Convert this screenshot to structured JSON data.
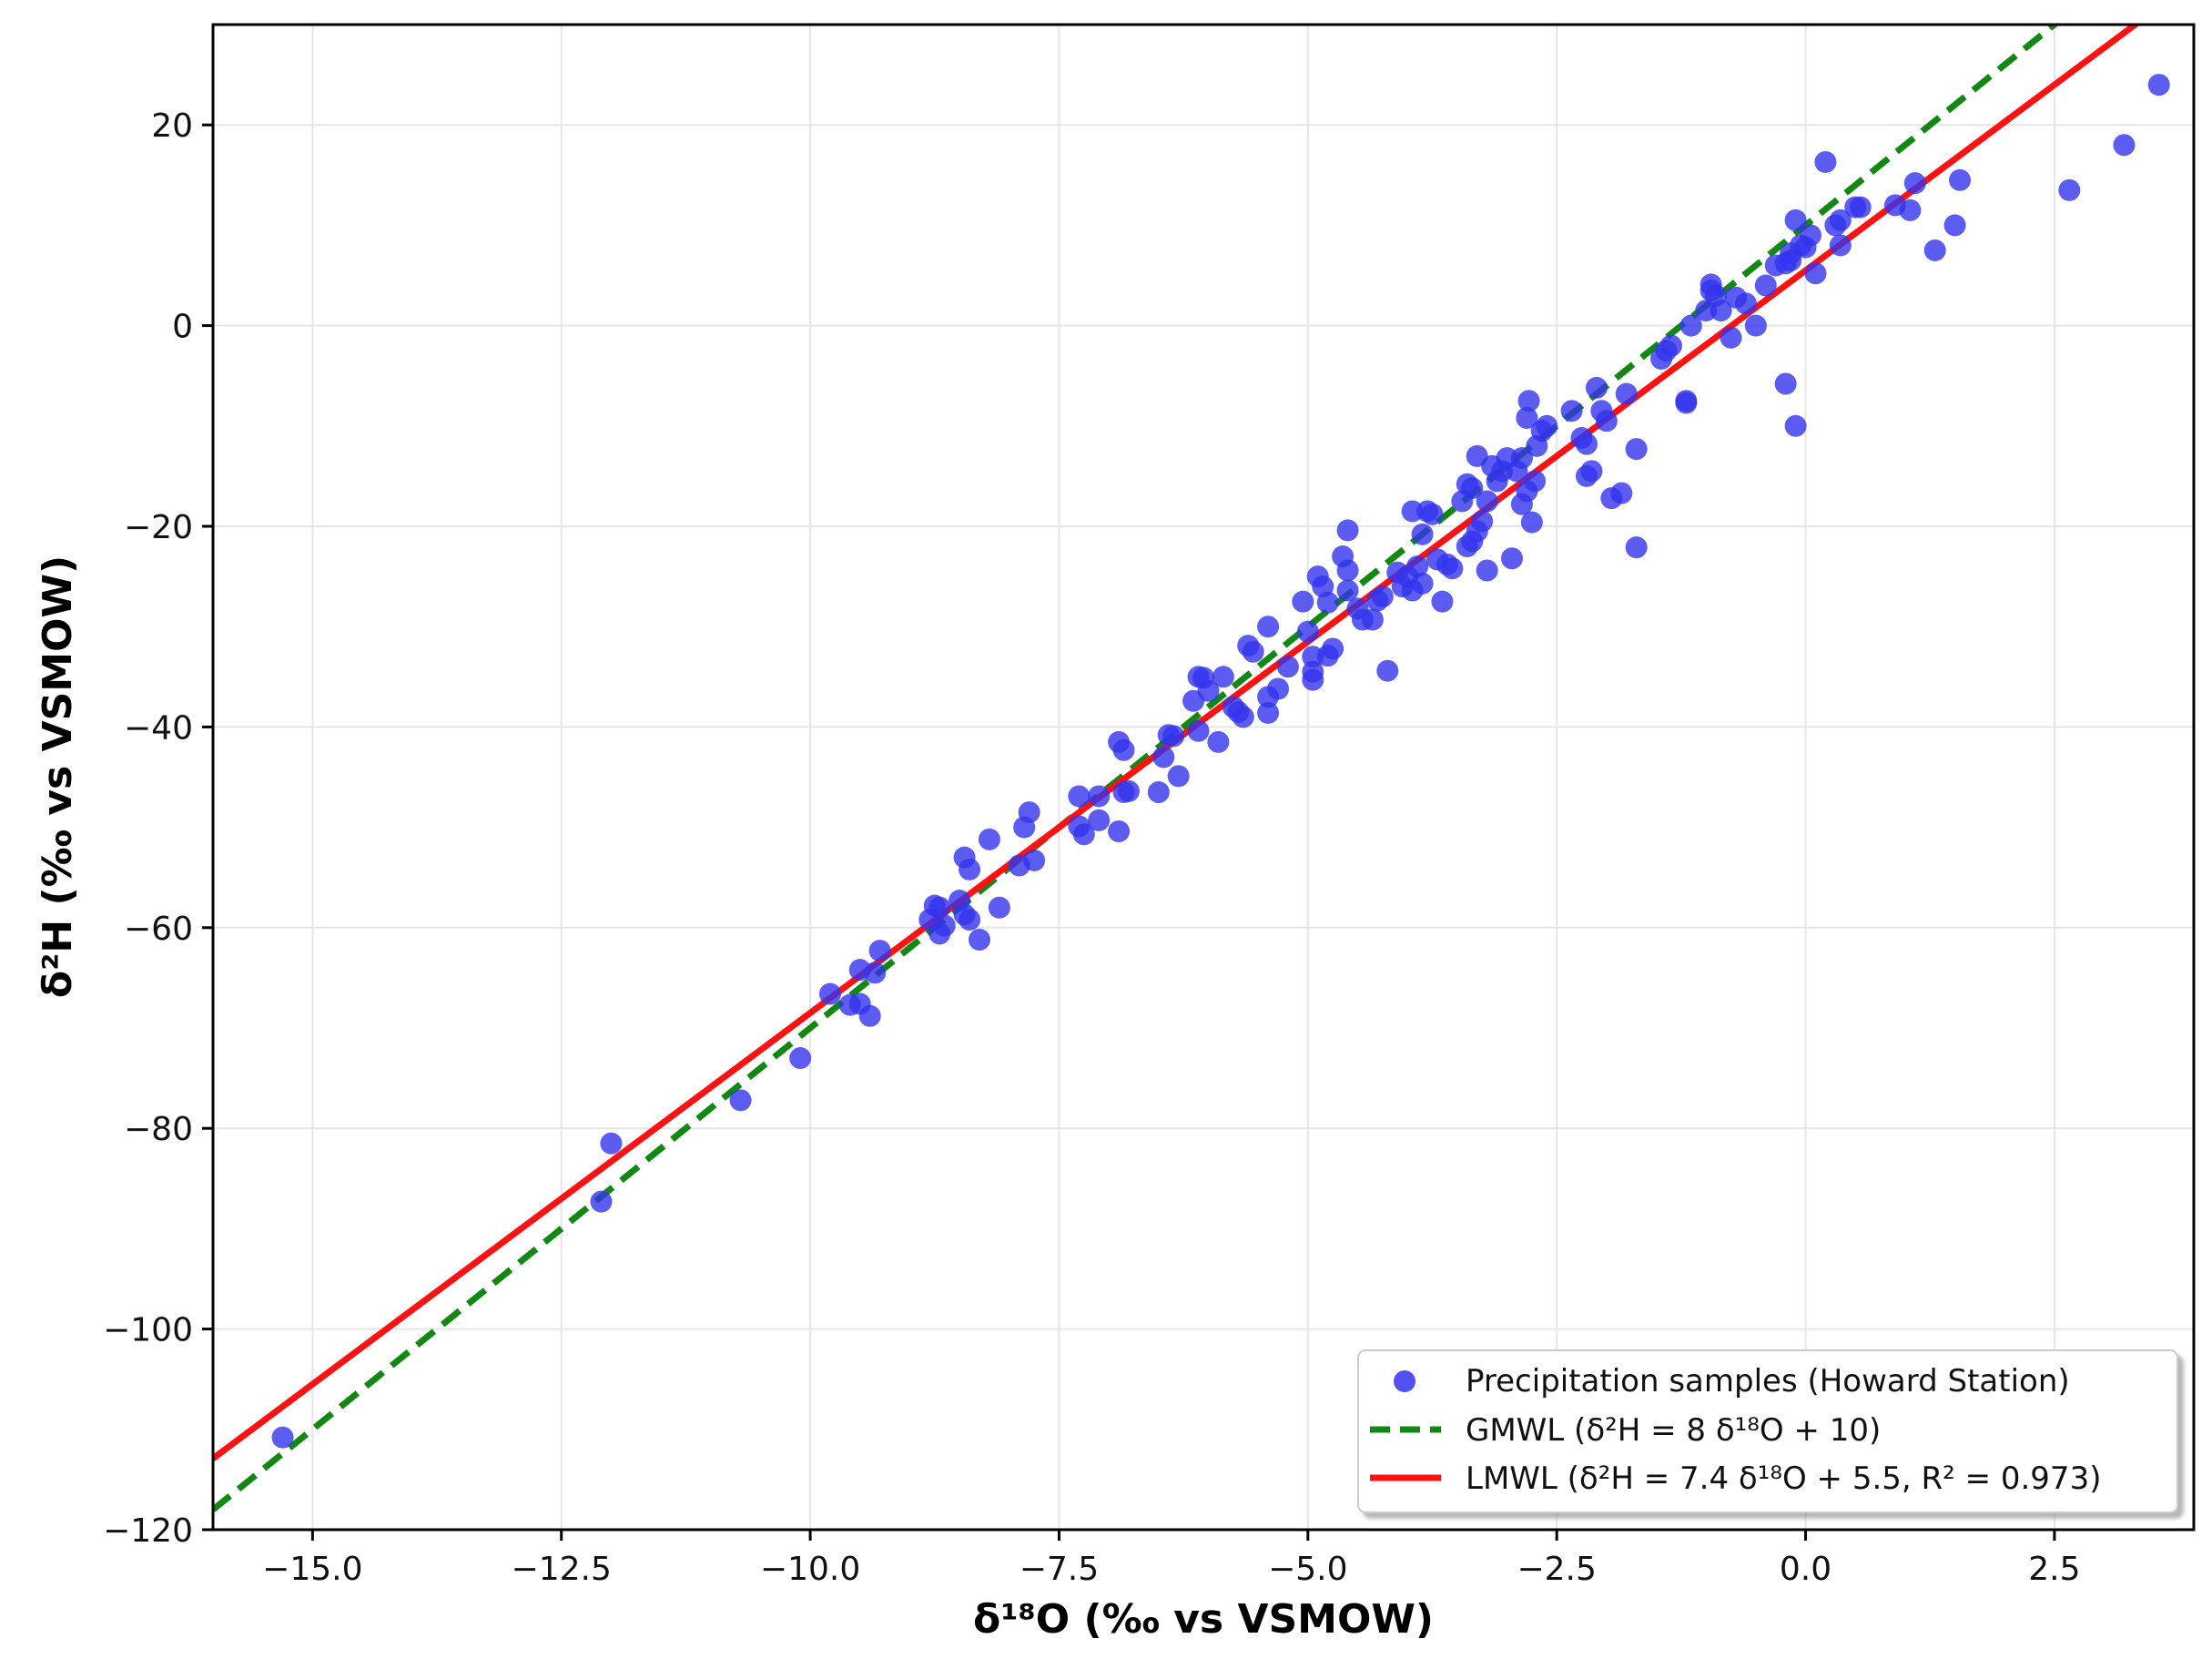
{
  "chart_data": {
    "type": "scatter",
    "title": "",
    "xlabel": "δ¹⁸O (‰ vs VSMOW)",
    "ylabel": "δ²H (‰ vs VSMOW)",
    "xlim": [
      -16.0,
      3.9
    ],
    "ylim": [
      -120,
      30
    ],
    "x_ticks": [
      -15.0,
      -12.5,
      -10.0,
      -7.5,
      -5.0,
      -2.5,
      0.0,
      2.5
    ],
    "x_tick_labels": [
      "−15.0",
      "−12.5",
      "−10.0",
      "−7.5",
      "−5.0",
      "−2.5",
      "0.0",
      "2.5"
    ],
    "y_ticks": [
      -120,
      -100,
      -80,
      -60,
      -40,
      -20,
      0,
      20
    ],
    "y_tick_labels": [
      "−120",
      "−100",
      "−80",
      "−60",
      "−40",
      "−20",
      "0",
      "20"
    ],
    "grid": true,
    "legend_position": "bottom-right",
    "series": [
      {
        "name": "Precipitation samples (Howard Station)",
        "kind": "scatter",
        "color": "#3333ee",
        "points": [
          [
            -15.3,
            -110.8
          ],
          [
            -12.1,
            -87.3
          ],
          [
            -12.0,
            -81.5
          ],
          [
            -10.7,
            -77.2
          ],
          [
            -10.1,
            -73.0
          ],
          [
            -9.8,
            -66.6
          ],
          [
            -9.6,
            -67.7
          ],
          [
            -9.5,
            -64.2
          ],
          [
            -9.5,
            -67.6
          ],
          [
            -9.4,
            -68.8
          ],
          [
            -9.3,
            -62.3
          ],
          [
            -9.35,
            -64.5
          ],
          [
            -8.8,
            -59.2
          ],
          [
            -8.75,
            -57.8
          ],
          [
            -8.7,
            -58.0
          ],
          [
            -8.7,
            -60.6
          ],
          [
            -8.65,
            -59.8
          ],
          [
            -8.5,
            -57.3
          ],
          [
            -8.45,
            -53.0
          ],
          [
            -8.4,
            -54.2
          ],
          [
            -8.45,
            -58.7
          ],
          [
            -8.4,
            -59.2
          ],
          [
            -8.3,
            -61.2
          ],
          [
            -8.2,
            -51.2
          ],
          [
            -8.1,
            -58.0
          ],
          [
            -7.9,
            -53.8
          ],
          [
            -7.85,
            -50.0
          ],
          [
            -7.8,
            -48.5
          ],
          [
            -7.75,
            -53.3
          ],
          [
            -7.3,
            -46.9
          ],
          [
            -7.3,
            -49.9
          ],
          [
            -7.25,
            -50.7
          ],
          [
            -7.1,
            -49.3
          ],
          [
            -7.1,
            -46.9
          ],
          [
            -6.9,
            -41.5
          ],
          [
            -6.85,
            -42.3
          ],
          [
            -6.85,
            -46.5
          ],
          [
            -6.8,
            -46.4
          ],
          [
            -6.9,
            -50.4
          ],
          [
            -6.5,
            -46.5
          ],
          [
            -6.45,
            -43.0
          ],
          [
            -6.4,
            -40.8
          ],
          [
            -6.35,
            -40.9
          ],
          [
            -6.3,
            -44.9
          ],
          [
            -6.15,
            -37.4
          ],
          [
            -6.1,
            -35.0
          ],
          [
            -6.05,
            -35.1
          ],
          [
            -6.1,
            -40.4
          ],
          [
            -6.0,
            -36.4
          ],
          [
            -5.9,
            -41.5
          ],
          [
            -5.85,
            -35.0
          ],
          [
            -5.75,
            -38.0
          ],
          [
            -5.7,
            -38.5
          ],
          [
            -5.65,
            -39.0
          ],
          [
            -5.6,
            -31.9
          ],
          [
            -5.55,
            -32.5
          ],
          [
            -5.4,
            -30.0
          ],
          [
            -5.4,
            -38.6
          ],
          [
            -5.4,
            -37.0
          ],
          [
            -5.3,
            -36.2
          ],
          [
            -5.2,
            -34.0
          ],
          [
            -5.05,
            -27.5
          ],
          [
            -5.0,
            -30.5
          ],
          [
            -4.95,
            -33.0
          ],
          [
            -4.95,
            -34.5
          ],
          [
            -4.95,
            -35.3
          ],
          [
            -4.9,
            -25.0
          ],
          [
            -4.85,
            -26.0
          ],
          [
            -4.8,
            -32.9
          ],
          [
            -4.75,
            -32.2
          ],
          [
            -4.8,
            -27.6
          ],
          [
            -4.65,
            -23.0
          ],
          [
            -4.6,
            -24.4
          ],
          [
            -4.6,
            -20.4
          ],
          [
            -4.6,
            -26.4
          ],
          [
            -4.5,
            -28.2
          ],
          [
            -4.45,
            -29.3
          ],
          [
            -4.35,
            -29.3
          ],
          [
            -4.3,
            -27.4
          ],
          [
            -4.25,
            -27.0
          ],
          [
            -4.2,
            -34.4
          ],
          [
            -4.1,
            -24.6
          ],
          [
            -4.05,
            -26.0
          ],
          [
            -4.0,
            -25.0
          ],
          [
            -3.95,
            -18.5
          ],
          [
            -3.95,
            -26.4
          ],
          [
            -3.9,
            -24.0
          ],
          [
            -3.85,
            -25.7
          ],
          [
            -3.85,
            -20.8
          ],
          [
            -3.8,
            -18.5
          ],
          [
            -3.75,
            -18.8
          ],
          [
            -3.7,
            -23.3
          ],
          [
            -3.65,
            -27.5
          ],
          [
            -3.6,
            -23.8
          ],
          [
            -3.55,
            -24.2
          ],
          [
            -3.45,
            -17.5
          ],
          [
            -3.4,
            -22.0
          ],
          [
            -3.4,
            -15.8
          ],
          [
            -3.35,
            -16.2
          ],
          [
            -3.35,
            -21.5
          ],
          [
            -3.3,
            -13.0
          ],
          [
            -3.3,
            -20.5
          ],
          [
            -3.25,
            -19.5
          ],
          [
            -3.2,
            -24.4
          ],
          [
            -3.2,
            -17.5
          ],
          [
            -3.15,
            -14.0
          ],
          [
            -3.1,
            -15.5
          ],
          [
            -3.05,
            -14.5
          ],
          [
            -3.0,
            -13.2
          ],
          [
            -2.95,
            -23.2
          ],
          [
            -2.9,
            -14.5
          ],
          [
            -2.85,
            -17.8
          ],
          [
            -2.85,
            -13.2
          ],
          [
            -2.8,
            -9.2
          ],
          [
            -2.8,
            -16.5
          ],
          [
            -2.78,
            -7.5
          ],
          [
            -2.75,
            -19.6
          ],
          [
            -2.72,
            -15.5
          ],
          [
            -2.7,
            -12.0
          ],
          [
            -2.65,
            -10.5
          ],
          [
            -2.6,
            -10.0
          ],
          [
            -2.35,
            -8.5
          ],
          [
            -2.25,
            -11.2
          ],
          [
            -2.2,
            -15.0
          ],
          [
            -2.2,
            -11.8
          ],
          [
            -2.15,
            -14.5
          ],
          [
            -2.1,
            -6.2
          ],
          [
            -2.05,
            -8.5
          ],
          [
            -2.0,
            -9.5
          ],
          [
            -1.95,
            -17.2
          ],
          [
            -1.85,
            -16.7
          ],
          [
            -1.8,
            -6.8
          ],
          [
            -1.7,
            -12.3
          ],
          [
            -1.7,
            -22.1
          ],
          [
            -1.45,
            -3.3
          ],
          [
            -1.4,
            -2.5
          ],
          [
            -1.35,
            -2.0
          ],
          [
            -1.2,
            -7.5
          ],
          [
            -1.2,
            -7.7
          ],
          [
            -1.15,
            0.0
          ],
          [
            -1.0,
            1.5
          ],
          [
            -0.95,
            3.5
          ],
          [
            -0.95,
            4.1
          ],
          [
            -0.9,
            3.0
          ],
          [
            -0.85,
            1.5
          ],
          [
            -0.75,
            -1.2
          ],
          [
            -0.7,
            2.8
          ],
          [
            -0.6,
            2.2
          ],
          [
            -0.5,
            0.0
          ],
          [
            -0.4,
            4.0
          ],
          [
            -0.3,
            6.0
          ],
          [
            -0.2,
            6.2
          ],
          [
            -0.15,
            6.5
          ],
          [
            -0.2,
            -5.8
          ],
          [
            -0.15,
            7.2
          ],
          [
            -0.1,
            10.5
          ],
          [
            -0.05,
            8.0
          ],
          [
            0.0,
            7.8
          ],
          [
            0.05,
            9.0
          ],
          [
            0.1,
            5.2
          ],
          [
            0.2,
            16.3
          ],
          [
            0.3,
            10.0
          ],
          [
            0.35,
            10.5
          ],
          [
            0.35,
            8.0
          ],
          [
            0.5,
            11.8
          ],
          [
            0.55,
            11.8
          ],
          [
            -0.1,
            -10.0
          ],
          [
            0.9,
            12.0
          ],
          [
            1.05,
            11.5
          ],
          [
            1.1,
            14.2
          ],
          [
            1.3,
            7.5
          ],
          [
            1.5,
            10.0
          ],
          [
            1.55,
            14.5
          ],
          [
            2.65,
            13.5
          ],
          [
            3.2,
            18.0
          ],
          [
            3.55,
            24.0
          ]
        ]
      },
      {
        "name": "GMWL (δ²H = 8 δ¹⁸O + 10)",
        "kind": "line",
        "style": "dashed",
        "color": "#118811",
        "slope": 8,
        "intercept": 10
      },
      {
        "name": "LMWL (δ²H = 7.4 δ¹⁸O + 5.5, R² = 0.973)",
        "kind": "line",
        "style": "solid",
        "color": "#ff1111",
        "slope": 7.4,
        "intercept": 5.5
      }
    ]
  }
}
